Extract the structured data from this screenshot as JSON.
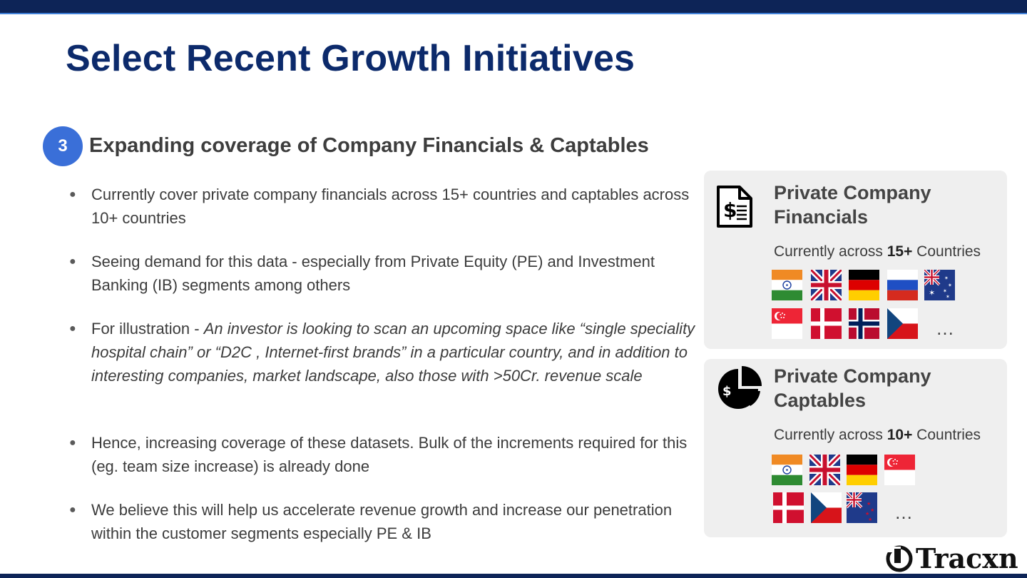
{
  "slide": {
    "title": "Select Recent Growth Initiatives",
    "step_number": "3",
    "section_heading": "Expanding coverage of Company Financials & Captables"
  },
  "bullets": [
    {
      "text": "Currently cover private company financials across 15+ countries and captables across 10+ countries"
    },
    {
      "text": "Seeing demand for this data - especially from Private Equity (PE) and Investment Banking (IB) segments among others"
    },
    {
      "prefix": "For illustration - ",
      "italic": "An investor is looking to scan an upcoming space like “single speciality hospital chain” or “D2C , Internet-first brands” in a particular country, and in addition to interesting companies, market landscape, also those with >50Cr. revenue scale"
    },
    {
      "text": "Hence, increasing coverage of these datasets. Bulk of the increments required for this (eg. team size increase) is already done"
    },
    {
      "text": "We believe this will help us accelerate revenue growth and increase our penetration within the customer segments especially PE & IB"
    }
  ],
  "cards": [
    {
      "title": "Private Company Financials",
      "sub_prefix": "Currently across ",
      "count": "15+",
      "sub_suffix": " Countries",
      "icon": "financial-document-icon",
      "flags": [
        "india",
        "united-kingdom",
        "germany",
        "russia",
        "australia",
        "singapore",
        "denmark",
        "norway",
        "czech-republic"
      ],
      "ellipsis": "…"
    },
    {
      "title": "Private Company Captables",
      "sub_prefix": "Currently across ",
      "count": "10+",
      "sub_suffix": " Countries",
      "icon": "pie-chart-dollar-icon",
      "flags": [
        "india",
        "united-kingdom",
        "germany",
        "singapore",
        "denmark",
        "czech-republic",
        "new-zealand"
      ],
      "ellipsis": "…"
    }
  ],
  "brand": {
    "logo_text": "Tracxn",
    "primary_color": "#0c2a6b",
    "accent_color": "#3a6fd8"
  }
}
